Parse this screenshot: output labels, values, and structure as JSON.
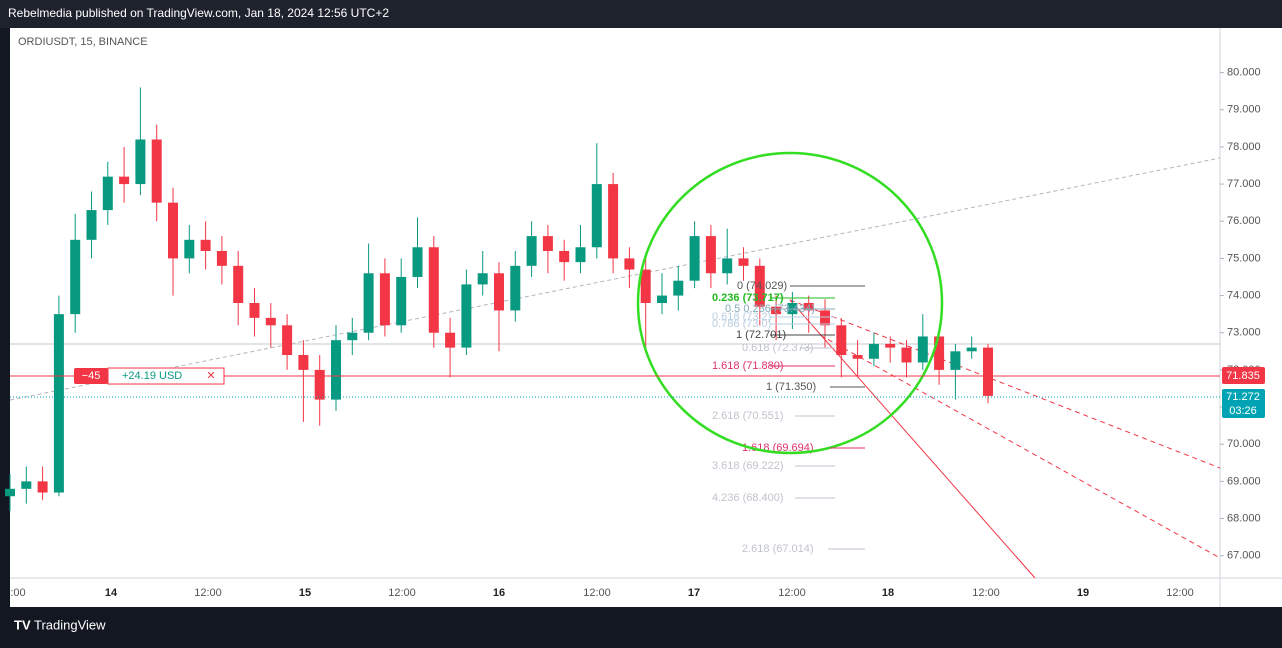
{
  "header": {
    "title": "Rebelmedia published on TradingView.com, Jan 18, 2024 12:56 UTC+2"
  },
  "chart_data": {
    "type": "candlestick",
    "title": "ORDIUSDT, 15, BINANCE",
    "open": [
      68.6,
      68.8,
      69.0,
      68.7,
      73.5,
      75.5,
      76.3,
      77.2,
      77.0,
      78.2,
      76.5,
      75.0,
      75.5,
      75.2,
      74.8,
      73.8,
      73.4,
      73.2,
      72.4,
      72.0,
      71.2,
      72.8,
      73.0,
      74.6,
      73.2,
      74.5,
      75.3,
      73.0,
      72.6,
      74.3,
      74.6,
      73.6,
      74.8,
      75.6,
      75.2,
      74.9,
      75.3,
      77.0,
      75.0,
      74.7,
      73.8,
      74.0,
      74.4,
      75.6,
      74.6,
      75.0,
      74.8,
      73.7,
      73.5,
      73.8,
      73.6,
      73.2,
      72.4,
      72.3,
      72.7,
      72.6,
      72.2,
      72.9,
      72.0,
      72.5,
      72.6
    ],
    "high": [
      69.2,
      69.4,
      69.4,
      74.0,
      76.2,
      76.8,
      77.6,
      78.0,
      79.6,
      78.6,
      76.9,
      75.9,
      76.0,
      75.6,
      75.2,
      74.2,
      73.8,
      73.5,
      72.8,
      72.4,
      73.2,
      73.4,
      75.4,
      75.0,
      75.0,
      76.1,
      75.6,
      73.4,
      74.7,
      75.2,
      74.9,
      75.2,
      76.0,
      75.9,
      75.5,
      75.9,
      78.1,
      77.3,
      75.3,
      75.0,
      74.6,
      74.8,
      76.0,
      75.9,
      75.8,
      75.3,
      75.0,
      74.0,
      74.1,
      74.0,
      73.9,
      73.4,
      72.8,
      73.0,
      72.9,
      72.8,
      73.5,
      73.1,
      72.7,
      72.9,
      72.7
    ],
    "low": [
      68.2,
      68.4,
      68.5,
      68.6,
      73.0,
      75.0,
      75.9,
      76.5,
      76.7,
      76.0,
      74.0,
      74.6,
      74.7,
      74.3,
      73.2,
      72.9,
      72.6,
      72.0,
      70.6,
      70.5,
      70.9,
      72.4,
      72.8,
      72.9,
      73.0,
      74.2,
      72.6,
      71.8,
      72.4,
      74.0,
      72.5,
      73.3,
      74.5,
      74.6,
      74.4,
      74.6,
      75.0,
      74.6,
      74.2,
      72.5,
      73.5,
      73.6,
      74.2,
      74.2,
      74.3,
      74.4,
      73.2,
      72.8,
      73.1,
      73.0,
      72.6,
      71.8,
      71.8,
      72.1,
      72.2,
      71.8,
      72.0,
      71.6,
      71.2,
      72.3,
      71.1
    ],
    "close": [
      68.8,
      69.0,
      68.7,
      73.5,
      75.5,
      76.3,
      77.2,
      77.0,
      78.2,
      76.5,
      75.0,
      75.5,
      75.2,
      74.8,
      73.8,
      73.4,
      73.2,
      72.4,
      72.0,
      71.2,
      72.8,
      73.0,
      74.6,
      73.2,
      74.5,
      75.3,
      73.0,
      72.6,
      74.3,
      74.6,
      73.6,
      74.8,
      75.6,
      75.2,
      74.9,
      75.3,
      77.0,
      75.0,
      74.7,
      73.8,
      74.0,
      74.4,
      75.6,
      74.6,
      75.0,
      74.8,
      73.7,
      73.5,
      73.8,
      73.6,
      73.2,
      72.4,
      72.3,
      72.7,
      72.6,
      72.2,
      72.9,
      72.0,
      72.5,
      72.6,
      71.3
    ],
    "up_color": "#089981",
    "down_color": "#f23645",
    "ylim": [
      66.4,
      81.2
    ],
    "yticks": [
      {
        "value": 80,
        "label": "80.000"
      },
      {
        "value": 79,
        "label": "79.000"
      },
      {
        "value": 78,
        "label": "78.000"
      },
      {
        "value": 77,
        "label": "77.000"
      },
      {
        "value": 76,
        "label": "76.000"
      },
      {
        "value": 75,
        "label": "75.000"
      },
      {
        "value": 74,
        "label": "74.000"
      },
      {
        "value": 73,
        "label": "73.000"
      },
      {
        "value": 72,
        "label": "72.000"
      },
      {
        "value": 71,
        "label": "71.000"
      },
      {
        "value": 70,
        "label": "70.000"
      },
      {
        "value": 69,
        "label": "69.000"
      },
      {
        "value": 68,
        "label": "68.000"
      },
      {
        "value": 67,
        "label": "67.000"
      }
    ],
    "xticks": [
      ":00",
      "14",
      "12:00",
      "15",
      "12:00",
      "16",
      "12:00",
      "17",
      "12:00",
      "18",
      "12:00",
      "19",
      "12:00"
    ],
    "last_price": {
      "value": 71.835,
      "label": "71.835"
    },
    "mark_price": {
      "value": 71.272,
      "label": "71.272"
    },
    "countdown": "03:26",
    "position": {
      "qty": "−45",
      "pnl": "+24.19 USD",
      "close": "✕"
    },
    "fib_labels": [
      "0 (74.029)",
      "0.236 (73.717)",
      "0.5 0.236 (73.434)",
      "0.618 (73.2)",
      "0.786 (73.0)",
      "1 (72.701)",
      "0.618 (72.373)",
      "1.618 (71.880)",
      "1 (71.350)",
      "2.618 (70.551)",
      "1.618 (69.694)",
      "3.618 (69.222)",
      "4.236 (68.400)",
      "2.618 (67.014)"
    ]
  },
  "footer": {
    "brand": "TradingView"
  }
}
